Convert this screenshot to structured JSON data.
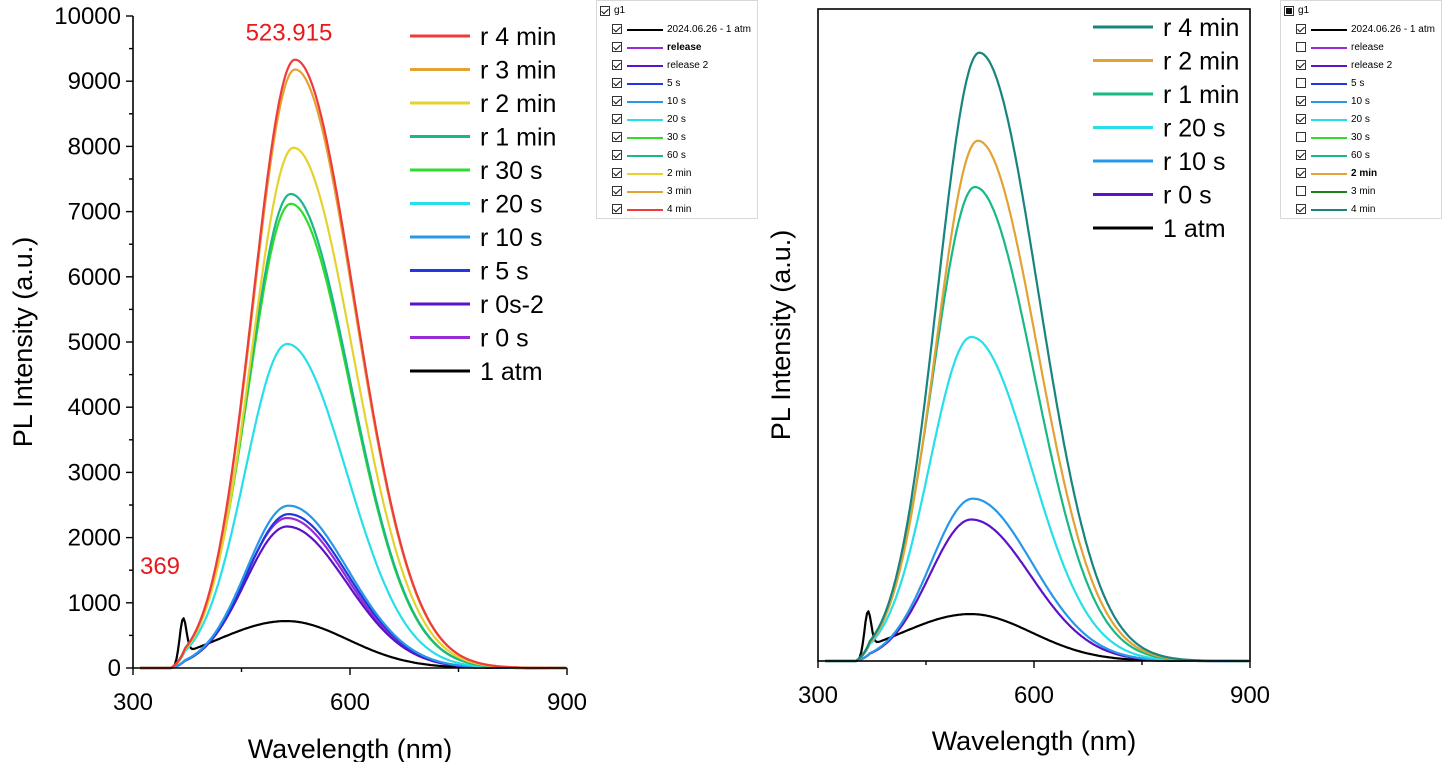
{
  "chart_data": [
    {
      "type": "line",
      "xlabel": "Wavelength (nm)",
      "ylabel": "PL Intensity (a.u.)",
      "xlim": [
        300,
        900
      ],
      "ylim": [
        0,
        10000
      ],
      "xticks": [
        300,
        600,
        900
      ],
      "yticks": [
        0,
        1000,
        2000,
        3000,
        4000,
        5000,
        6000,
        7000,
        8000,
        9000,
        10000
      ],
      "grid": false,
      "legend_position": "top-right",
      "annotations": [
        {
          "text": "523.915",
          "x": 523.915,
          "y": 9350,
          "color": "#e8191b"
        },
        {
          "text": "369",
          "x": 369,
          "y": 900,
          "color": "#e8191b"
        }
      ],
      "series": [
        {
          "name": "r 4 min",
          "color": "#ef3b3b",
          "peak": 9330,
          "center": 524
        },
        {
          "name": "r 3 min",
          "color": "#e3a233",
          "peak": 9180,
          "center": 524
        },
        {
          "name": "r 2 min",
          "color": "#e6d22e",
          "peak": 7980,
          "center": 522
        },
        {
          "name": "r 1 min",
          "color": "#19b884",
          "peak": 7270,
          "center": 518
        },
        {
          "name": "r 30 s",
          "color": "#2fdd2b",
          "peak": 7120,
          "center": 518
        },
        {
          "name": "r 20 s",
          "color": "#26dfe8",
          "peak": 4970,
          "center": 513
        },
        {
          "name": "r 10 s",
          "color": "#2798e8",
          "peak": 2490,
          "center": 515
        },
        {
          "name": "r 5 s",
          "color": "#2336e0",
          "peak": 2360,
          "center": 515
        },
        {
          "name": "r 0s-2",
          "color": "#5b12c8",
          "peak": 2170,
          "center": 513
        },
        {
          "name": "r 0 s",
          "color": "#9a2ad6",
          "peak": 2300,
          "center": 513
        },
        {
          "name": "1 atm",
          "color": "#000000",
          "peak": 720,
          "center": 512
        }
      ]
    },
    {
      "type": "line",
      "xlabel": "Wavelength (nm)",
      "ylabel": "PL Intensity (a.u.)",
      "xlim": [
        300,
        900
      ],
      "ylim": [
        0,
        10000
      ],
      "xticks": [
        300,
        600,
        900
      ],
      "grid": false,
      "legend_position": "top-right",
      "series": [
        {
          "name": "r 4 min",
          "color": "#17857e",
          "peak": 9330,
          "center": 524
        },
        {
          "name": "r 2 min",
          "color": "#e3a233",
          "peak": 7980,
          "center": 522
        },
        {
          "name": "r 1 min",
          "color": "#19b884",
          "peak": 7270,
          "center": 518
        },
        {
          "name": "r 20 s",
          "color": "#26dfe8",
          "peak": 4970,
          "center": 513
        },
        {
          "name": "r 10 s",
          "color": "#2798e8",
          "peak": 2490,
          "center": 515
        },
        {
          "name": "r 0 s",
          "color": "#5b12c8",
          "peak": 2170,
          "center": 513
        },
        {
          "name": "1 atm",
          "color": "#000000",
          "peak": 720,
          "center": 512
        }
      ]
    }
  ],
  "layer_lists": [
    {
      "group": "g1",
      "group_checkbox": "checked",
      "items": [
        {
          "label": "2024.06.26 - 1 atm",
          "checked": true,
          "color": "#000000",
          "bold": false
        },
        {
          "label": "release",
          "checked": true,
          "color": "#9a2ad6",
          "bold": true
        },
        {
          "label": "release 2",
          "checked": true,
          "color": "#5b12c8",
          "bold": false
        },
        {
          "label": "5 s",
          "checked": true,
          "color": "#2336e0",
          "bold": false
        },
        {
          "label": "10 s",
          "checked": true,
          "color": "#2798e8",
          "bold": false
        },
        {
          "label": "20 s",
          "checked": true,
          "color": "#26dfe8",
          "bold": false
        },
        {
          "label": "30 s",
          "checked": true,
          "color": "#2fdd2b",
          "bold": false
        },
        {
          "label": "60 s",
          "checked": true,
          "color": "#19b884",
          "bold": false
        },
        {
          "label": "2 min",
          "checked": true,
          "color": "#e6d22e",
          "bold": false
        },
        {
          "label": "3 min",
          "checked": true,
          "color": "#e3a233",
          "bold": false
        },
        {
          "label": "4 min",
          "checked": true,
          "color": "#ef3b3b",
          "bold": false
        }
      ]
    },
    {
      "group": "g1",
      "group_checkbox": "partial",
      "items": [
        {
          "label": "2024.06.26 - 1 atm",
          "checked": true,
          "color": "#000000",
          "bold": false
        },
        {
          "label": "release",
          "checked": false,
          "color": "#9a2ad6",
          "bold": false
        },
        {
          "label": "release 2",
          "checked": true,
          "color": "#5b12c8",
          "bold": false
        },
        {
          "label": "5 s",
          "checked": false,
          "color": "#2336e0",
          "bold": false
        },
        {
          "label": "10 s",
          "checked": true,
          "color": "#2798e8",
          "bold": false
        },
        {
          "label": "20 s",
          "checked": true,
          "color": "#26dfe8",
          "bold": false
        },
        {
          "label": "30 s",
          "checked": false,
          "color": "#2fdd2b",
          "bold": false
        },
        {
          "label": "60 s",
          "checked": true,
          "color": "#19b884",
          "bold": false
        },
        {
          "label": "2 min",
          "checked": true,
          "color": "#e3a233",
          "bold": true
        },
        {
          "label": "3 min",
          "checked": false,
          "color": "#1b7f1b",
          "bold": false
        },
        {
          "label": "4 min",
          "checked": true,
          "color": "#17857e",
          "bold": false
        }
      ]
    }
  ]
}
